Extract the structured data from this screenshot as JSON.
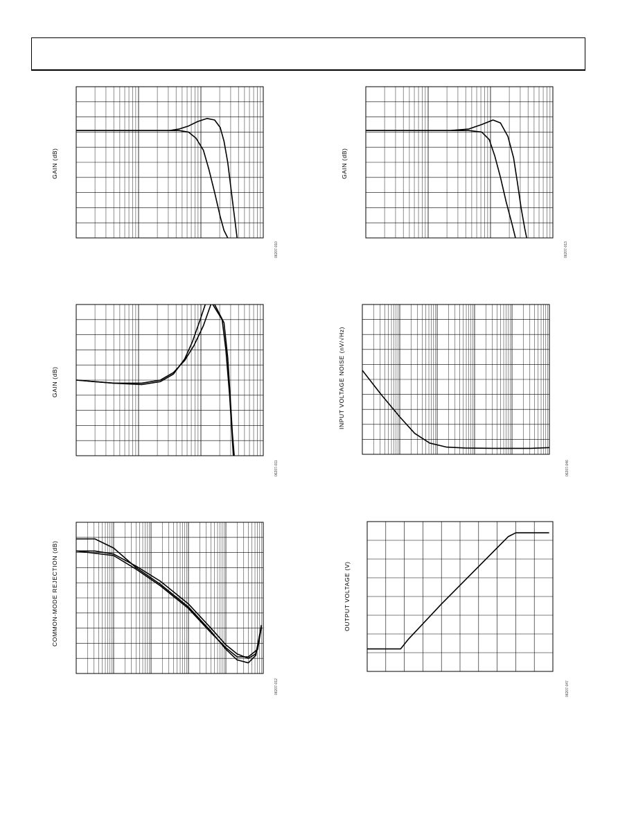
{
  "chart_data": [
    {
      "id": "c1",
      "type": "line",
      "log_x": true,
      "x_decades": 3,
      "x_range": [
        0,
        1
      ],
      "ylim": [
        0,
        10
      ],
      "ylabel": "GAIN (dB)",
      "figure_id": "06207-010",
      "series": [
        {
          "values": [
            [
              0,
              7.1
            ],
            [
              0.4,
              7.1
            ],
            [
              0.5,
              7.1
            ],
            [
              0.55,
              7.2
            ],
            [
              0.6,
              7.4
            ],
            [
              0.65,
              7.7
            ],
            [
              0.7,
              7.9
            ],
            [
              0.74,
              7.8
            ],
            [
              0.77,
              7.3
            ],
            [
              0.79,
              6.4
            ],
            [
              0.81,
              5.0
            ],
            [
              0.83,
              3.0
            ],
            [
              0.85,
              1.0
            ],
            [
              0.86,
              0
            ]
          ]
        },
        {
          "values": [
            [
              0,
              7.1
            ],
            [
              0.55,
              7.1
            ],
            [
              0.6,
              7.0
            ],
            [
              0.64,
              6.6
            ],
            [
              0.68,
              5.8
            ],
            [
              0.71,
              4.5
            ],
            [
              0.74,
              3.0
            ],
            [
              0.77,
              1.4
            ],
            [
              0.79,
              0.5
            ],
            [
              0.81,
              0
            ]
          ]
        }
      ]
    },
    {
      "id": "c2",
      "type": "line",
      "log_x": true,
      "x_decades": 3,
      "x_range": [
        0,
        1
      ],
      "ylim": [
        0,
        10
      ],
      "ylabel": "GAIN (dB)",
      "figure_id": "06207-013",
      "series": [
        {
          "values": [
            [
              0,
              7.1
            ],
            [
              0.45,
              7.1
            ],
            [
              0.55,
              7.2
            ],
            [
              0.62,
              7.5
            ],
            [
              0.68,
              7.8
            ],
            [
              0.72,
              7.6
            ],
            [
              0.76,
              6.7
            ],
            [
              0.79,
              5.3
            ],
            [
              0.81,
              3.7
            ],
            [
              0.83,
              2.0
            ],
            [
              0.85,
              0.6
            ],
            [
              0.86,
              0
            ]
          ]
        },
        {
          "values": [
            [
              0,
              7.1
            ],
            [
              0.55,
              7.1
            ],
            [
              0.62,
              7.0
            ],
            [
              0.66,
              6.5
            ],
            [
              0.69,
              5.4
            ],
            [
              0.72,
              4.0
            ],
            [
              0.75,
              2.4
            ],
            [
              0.78,
              1.0
            ],
            [
              0.8,
              0
            ]
          ]
        }
      ]
    },
    {
      "id": "c3",
      "type": "line",
      "log_x": true,
      "x_decades": 3,
      "x_range": [
        0,
        1
      ],
      "ylim": [
        0,
        10
      ],
      "ylabel": "GAIN (dB)",
      "figure_id": "06207-011",
      "series": [
        {
          "values": [
            [
              0,
              5.0
            ],
            [
              0.2,
              4.8
            ],
            [
              0.35,
              4.7
            ],
            [
              0.45,
              4.9
            ],
            [
              0.52,
              5.4
            ],
            [
              0.58,
              6.4
            ],
            [
              0.62,
              7.5
            ],
            [
              0.66,
              8.9
            ],
            [
              0.69,
              10
            ]
          ]
        },
        {
          "values": [
            [
              0,
              5.0
            ],
            [
              0.2,
              4.8
            ],
            [
              0.35,
              4.8
            ],
            [
              0.45,
              5.0
            ],
            [
              0.52,
              5.5
            ],
            [
              0.58,
              6.3
            ],
            [
              0.63,
              7.3
            ],
            [
              0.68,
              8.6
            ],
            [
              0.72,
              10
            ]
          ]
        },
        {
          "values": [
            [
              0.73,
              10
            ],
            [
              0.78,
              9.0
            ],
            [
              0.8,
              7.0
            ],
            [
              0.82,
              4.0
            ],
            [
              0.83,
              2.0
            ],
            [
              0.84,
              0
            ]
          ]
        },
        {
          "values": [
            [
              0.74,
              10
            ],
            [
              0.79,
              8.8
            ],
            [
              0.81,
              6.5
            ],
            [
              0.825,
              3.5
            ],
            [
              0.835,
              1.5
            ],
            [
              0.845,
              0
            ]
          ]
        }
      ]
    },
    {
      "id": "c4",
      "type": "line",
      "log_x": true,
      "x_decades": 5,
      "x_range": [
        0,
        1
      ],
      "ylim": [
        0,
        10
      ],
      "ylabel": "INPUT VOLTAGE NOISE (nV/√Hz)",
      "figure_id": "06207-046",
      "series": [
        {
          "values": [
            [
              0,
              5.6
            ],
            [
              0.1,
              4.0
            ],
            [
              0.2,
              2.5
            ],
            [
              0.28,
              1.4
            ],
            [
              0.36,
              0.75
            ],
            [
              0.45,
              0.48
            ],
            [
              0.55,
              0.42
            ],
            [
              0.7,
              0.4
            ],
            [
              0.9,
              0.4
            ],
            [
              1,
              0.45
            ]
          ]
        }
      ]
    },
    {
      "id": "c5",
      "type": "line",
      "log_x": true,
      "x_decades": 5,
      "x_range": [
        0,
        1
      ],
      "ylim": [
        0,
        10
      ],
      "ylabel": "COMMON-MODE REJECTION (dB)",
      "figure_id": "06207-012",
      "series": [
        {
          "values": [
            [
              0,
              8.9
            ],
            [
              0.1,
              8.9
            ],
            [
              0.2,
              8.3
            ],
            [
              0.32,
              7.0
            ],
            [
              0.45,
              5.9
            ],
            [
              0.6,
              4.4
            ],
            [
              0.72,
              2.8
            ],
            [
              0.8,
              1.6
            ],
            [
              0.86,
              0.9
            ],
            [
              0.92,
              0.7
            ],
            [
              0.96,
              1.2
            ],
            [
              0.99,
              3.2
            ]
          ]
        },
        {
          "values": [
            [
              0,
              8.1
            ],
            [
              0.1,
              8.1
            ],
            [
              0.2,
              7.9
            ],
            [
              0.32,
              7.1
            ],
            [
              0.45,
              6.1
            ],
            [
              0.6,
              4.6
            ],
            [
              0.72,
              3.0
            ],
            [
              0.8,
              1.9
            ],
            [
              0.86,
              1.3
            ],
            [
              0.92,
              1.0
            ],
            [
              0.96,
              1.3
            ],
            [
              0.99,
              3.0
            ]
          ]
        },
        {
          "values": [
            [
              0,
              8.1
            ],
            [
              0.2,
              7.8
            ],
            [
              0.32,
              6.9
            ],
            [
              0.45,
              5.8
            ],
            [
              0.6,
              4.3
            ],
            [
              0.72,
              2.7
            ],
            [
              0.8,
              1.7
            ],
            [
              0.86,
              1.1
            ],
            [
              0.92,
              1.1
            ],
            [
              0.97,
              1.6
            ],
            [
              0.99,
              3.1
            ]
          ]
        }
      ]
    },
    {
      "id": "c6",
      "type": "line",
      "log_x": false,
      "x_divisions": 10,
      "x_range": [
        0,
        1
      ],
      "ylim": [
        0,
        8
      ],
      "ylabel": "OUTPUT VOLTAGE (V)",
      "figure_id": "06207-047",
      "series": [
        {
          "values": [
            [
              0,
              1.2
            ],
            [
              0.18,
              1.2
            ],
            [
              0.22,
              1.7
            ],
            [
              0.4,
              3.6
            ],
            [
              0.6,
              5.6
            ],
            [
              0.76,
              7.2
            ],
            [
              0.8,
              7.4
            ],
            [
              0.98,
              7.4
            ]
          ]
        }
      ]
    }
  ]
}
